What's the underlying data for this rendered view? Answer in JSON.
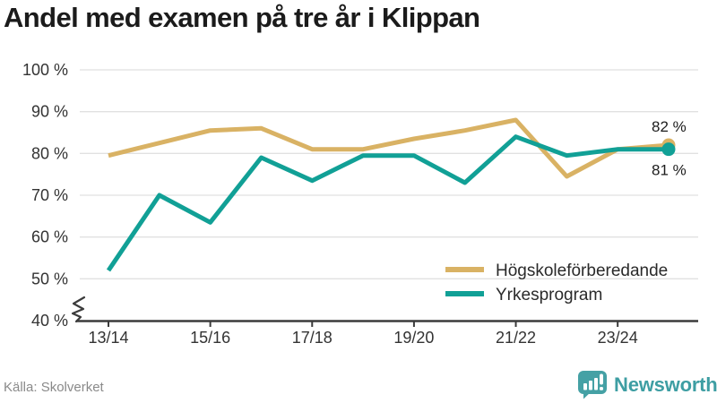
{
  "title": "Andel med examen på tre år i Klippan",
  "source": {
    "text": "Källa: Skolverket"
  },
  "branding": {
    "logo_text": "Newsworthy"
  },
  "colors": {
    "gold": "#D9B264",
    "teal": "#11A096",
    "axis": "#3B3B3B",
    "grid": "#E1E1E1",
    "tick_text": "#333333",
    "end_label_text": "#1C1C1C",
    "legend_text": "#2A2A2A",
    "logo_text_teal": "#3E9EA3",
    "logo_icon_teal": "#45A1A5",
    "source_gray": "#8A8A8A"
  },
  "chart_data": {
    "type": "line",
    "title": "Andel med examen på tre år i Klippan",
    "x": [
      "13/14",
      "14/15",
      "15/16",
      "16/17",
      "17/18",
      "18/19",
      "19/20",
      "20/21",
      "21/22",
      "22/23",
      "23/24",
      "24/25"
    ],
    "xtick_indices": [
      0,
      2,
      4,
      6,
      8,
      10
    ],
    "xtick_labels": [
      "13/14",
      "15/16",
      "17/18",
      "19/20",
      "21/22",
      "23/24"
    ],
    "yticks": [
      100,
      90,
      80,
      70,
      60,
      50,
      40
    ],
    "ytick_suffix": " %",
    "ylim": [
      40,
      100
    ],
    "grid": true,
    "axis_break": true,
    "legend_position": "inside-bottom-right",
    "series": [
      {
        "name": "Högskoleförberedande",
        "color": "#D9B264",
        "values": [
          79.5,
          82.5,
          85.5,
          86,
          81,
          81,
          83.5,
          85.5,
          88,
          74.5,
          81,
          82
        ],
        "end_label": "82 %"
      },
      {
        "name": "Yrkesprogram",
        "color": "#11A096",
        "values": [
          52,
          70,
          63.5,
          79,
          73.5,
          79.5,
          79.5,
          73,
          84,
          79.5,
          81,
          81
        ],
        "end_label": "81 %"
      }
    ]
  }
}
